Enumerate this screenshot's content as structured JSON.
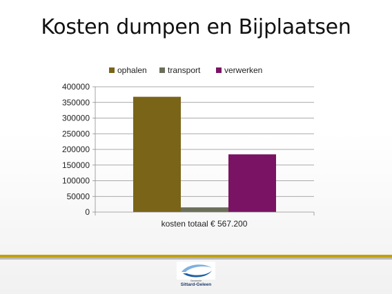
{
  "chart_data": {
    "type": "bar",
    "title": "Kosten dumpen en Bijplaatsen",
    "categories": [
      "kosten totaal € 567.200"
    ],
    "series": [
      {
        "name": "ophalen",
        "color": "#7a6418",
        "values": [
          368000
        ]
      },
      {
        "name": "transport",
        "color": "#6b6f5a",
        "values": [
          15000
        ]
      },
      {
        "name": "verwerken",
        "color": "#7a1364",
        "values": [
          184200
        ]
      }
    ],
    "yticks": [
      0,
      50000,
      100000,
      150000,
      200000,
      250000,
      300000,
      350000,
      400000
    ],
    "ylim": [
      0,
      400000
    ],
    "grid": true,
    "legend": "top"
  },
  "logo": {
    "line1": "Gemeente",
    "line2": "Sittard-Geleen",
    "colors": {
      "blue": "#1f5fa8",
      "light": "#7fb0e0"
    }
  },
  "theme": {
    "gold": "#c0a10f",
    "grey": "#b9b9b9"
  }
}
